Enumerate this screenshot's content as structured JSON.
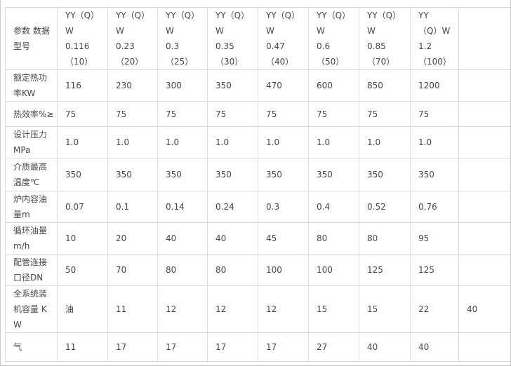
{
  "colors": {
    "background": "#ffffff",
    "grid_border": "#dddddd",
    "text": "#474747",
    "page_edge": "#cccccc"
  },
  "table": {
    "header": {
      "corner": "参数 数据\n型号",
      "models": [
        "YY（Q）\nW\n0.116\n（10）",
        "YY（Q）\nW\n0.23\n（20）",
        "YY（Q）\nW\n0.3\n（25）",
        "YY（Q）\nW\n0.35\n（30）",
        "YY（Q）\nW\n0.47\n（40）",
        "YY（Q）\nW\n0.6\n（50）",
        "YY（Q）\nW\n0.85\n（70）",
        "YY\n（Q）W\n1.2\n（100）"
      ],
      "trailing": ""
    },
    "rows": [
      {
        "label": "额定热功\n率KW",
        "cells": [
          "116",
          "230",
          "300",
          "350",
          "470",
          "600",
          "850",
          "1200",
          ""
        ]
      },
      {
        "label": "热效率%≥",
        "cells": [
          "75",
          "75",
          "75",
          "75",
          "75",
          "75",
          "75",
          "75",
          ""
        ]
      },
      {
        "label": "设计压力\nMPa",
        "cells": [
          "1.0",
          "1.0",
          "1.0",
          "1.0",
          "1.0",
          "1.0",
          "1.0",
          "1.0",
          ""
        ]
      },
      {
        "label": "介质最高\n温度℃",
        "cells": [
          "350",
          "350",
          "350",
          "350",
          "350",
          "350",
          "350",
          "350",
          ""
        ]
      },
      {
        "label": "炉内容油\n量m",
        "cells": [
          "0.07",
          "0.1",
          "0.14",
          "0.24",
          "0.3",
          "0.4",
          "0.52",
          "0.76",
          ""
        ]
      },
      {
        "label": "循环油量\nm/h",
        "cells": [
          "10",
          "20",
          "40",
          "40",
          "45",
          "80",
          "80",
          "95",
          ""
        ]
      },
      {
        "label": "配管连接\n口径DN",
        "cells": [
          "50",
          "70",
          "80",
          "80",
          "100",
          "100",
          "125",
          "125",
          ""
        ]
      },
      {
        "label": "全系统装\n机容量 K\nW",
        "cells": [
          "油",
          "11",
          "12",
          "12",
          "12",
          "15",
          "15",
          "22",
          "40"
        ]
      },
      {
        "label": "气",
        "cells": [
          "11",
          "17",
          "17",
          "17",
          "17",
          "27",
          "40",
          "40",
          ""
        ]
      }
    ]
  }
}
